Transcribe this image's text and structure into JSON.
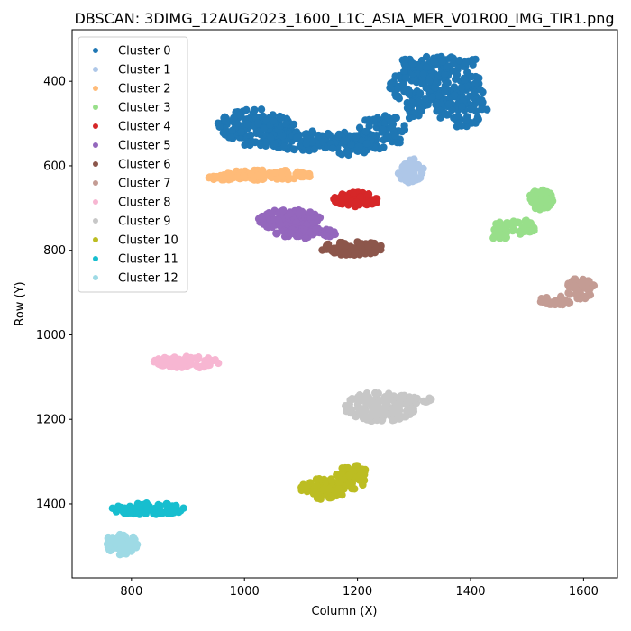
{
  "chart_data": {
    "type": "scatter",
    "title": "DBSCAN: 3DIMG_12AUG2023_1600_L1C_ASIA_MER_V01R00_IMG_TIR1.png",
    "xlabel": "Column (X)",
    "ylabel": "Row (Y)",
    "xlim": [
      695,
      1660
    ],
    "ylim": [
      1575,
      278
    ],
    "y_inverted": true,
    "xticks": [
      800,
      1000,
      1200,
      1400,
      1600
    ],
    "yticks": [
      400,
      600,
      800,
      1000,
      1200,
      1400
    ],
    "grid": false,
    "legend_position": "top-left",
    "series": [
      {
        "name": "Cluster 0",
        "color": "#1f77b4",
        "blobs": [
          {
            "cx": 1340,
            "cy": 412,
            "rx": 85,
            "ry": 50,
            "n": 200
          },
          {
            "cx": 1345,
            "cy": 355,
            "rx": 75,
            "ry": 14,
            "n": 60
          },
          {
            "cx": 1385,
            "cy": 470,
            "rx": 45,
            "ry": 40,
            "n": 60
          },
          {
            "cx": 1020,
            "cy": 510,
            "rx": 70,
            "ry": 45,
            "n": 150
          },
          {
            "cx": 1100,
            "cy": 540,
            "rx": 60,
            "ry": 25,
            "n": 80
          },
          {
            "cx": 1185,
            "cy": 545,
            "rx": 55,
            "ry": 30,
            "n": 90
          },
          {
            "cx": 1245,
            "cy": 520,
            "rx": 45,
            "ry": 40,
            "n": 70
          },
          {
            "cx": 1300,
            "cy": 470,
            "rx": 15,
            "ry": 25,
            "n": 20
          }
        ]
      },
      {
        "name": "Cluster 1",
        "color": "#aec7e8",
        "blobs": [
          {
            "cx": 1294,
            "cy": 610,
            "rx": 24,
            "ry": 30,
            "n": 60
          }
        ]
      },
      {
        "name": "Cluster 2",
        "color": "#ffbb78",
        "blobs": [
          {
            "cx": 1035,
            "cy": 622,
            "rx": 85,
            "ry": 12,
            "n": 90
          },
          {
            "cx": 970,
            "cy": 628,
            "rx": 35,
            "ry": 6,
            "n": 25
          }
        ]
      },
      {
        "name": "Cluster 3",
        "color": "#98df8a",
        "blobs": [
          {
            "cx": 1525,
            "cy": 680,
            "rx": 22,
            "ry": 25,
            "n": 50
          },
          {
            "cx": 1480,
            "cy": 745,
            "rx": 40,
            "ry": 18,
            "n": 45
          },
          {
            "cx": 1452,
            "cy": 767,
            "rx": 20,
            "ry": 6,
            "n": 15
          }
        ]
      },
      {
        "name": "Cluster 4",
        "color": "#d62728",
        "blobs": [
          {
            "cx": 1198,
            "cy": 680,
            "rx": 40,
            "ry": 17,
            "n": 70
          }
        ]
      },
      {
        "name": "Cluster 5",
        "color": "#9467bd",
        "blobs": [
          {
            "cx": 1080,
            "cy": 728,
            "rx": 55,
            "ry": 25,
            "n": 120
          },
          {
            "cx": 1110,
            "cy": 760,
            "rx": 55,
            "ry": 13,
            "n": 70
          }
        ]
      },
      {
        "name": "Cluster 6",
        "color": "#8c564b",
        "blobs": [
          {
            "cx": 1190,
            "cy": 795,
            "rx": 55,
            "ry": 17,
            "n": 80
          }
        ]
      },
      {
        "name": "Cluster 7",
        "color": "#c49c94",
        "blobs": [
          {
            "cx": 1595,
            "cy": 890,
            "rx": 25,
            "ry": 25,
            "n": 50
          },
          {
            "cx": 1552,
            "cy": 920,
            "rx": 30,
            "ry": 13,
            "n": 35
          }
        ]
      },
      {
        "name": "Cluster 8",
        "color": "#f7b6d2",
        "blobs": [
          {
            "cx": 897,
            "cy": 1065,
            "rx": 60,
            "ry": 14,
            "n": 70
          }
        ]
      },
      {
        "name": "Cluster 9",
        "color": "#c7c7c7",
        "blobs": [
          {
            "cx": 1240,
            "cy": 1170,
            "rx": 65,
            "ry": 35,
            "n": 130
          },
          {
            "cx": 1295,
            "cy": 1155,
            "rx": 40,
            "ry": 10,
            "n": 25
          }
        ]
      },
      {
        "name": "Cluster 10",
        "color": "#bcbd22",
        "blobs": [
          {
            "cx": 1140,
            "cy": 1365,
            "rx": 40,
            "ry": 25,
            "n": 80
          },
          {
            "cx": 1190,
            "cy": 1335,
            "rx": 28,
            "ry": 30,
            "n": 60
          }
        ]
      },
      {
        "name": "Cluster 11",
        "color": "#17becf",
        "blobs": [
          {
            "cx": 830,
            "cy": 1412,
            "rx": 65,
            "ry": 14,
            "n": 90
          }
        ]
      },
      {
        "name": "Cluster 12",
        "color": "#9edae5",
        "blobs": [
          {
            "cx": 782,
            "cy": 1495,
            "rx": 30,
            "ry": 25,
            "n": 60
          }
        ]
      }
    ]
  }
}
